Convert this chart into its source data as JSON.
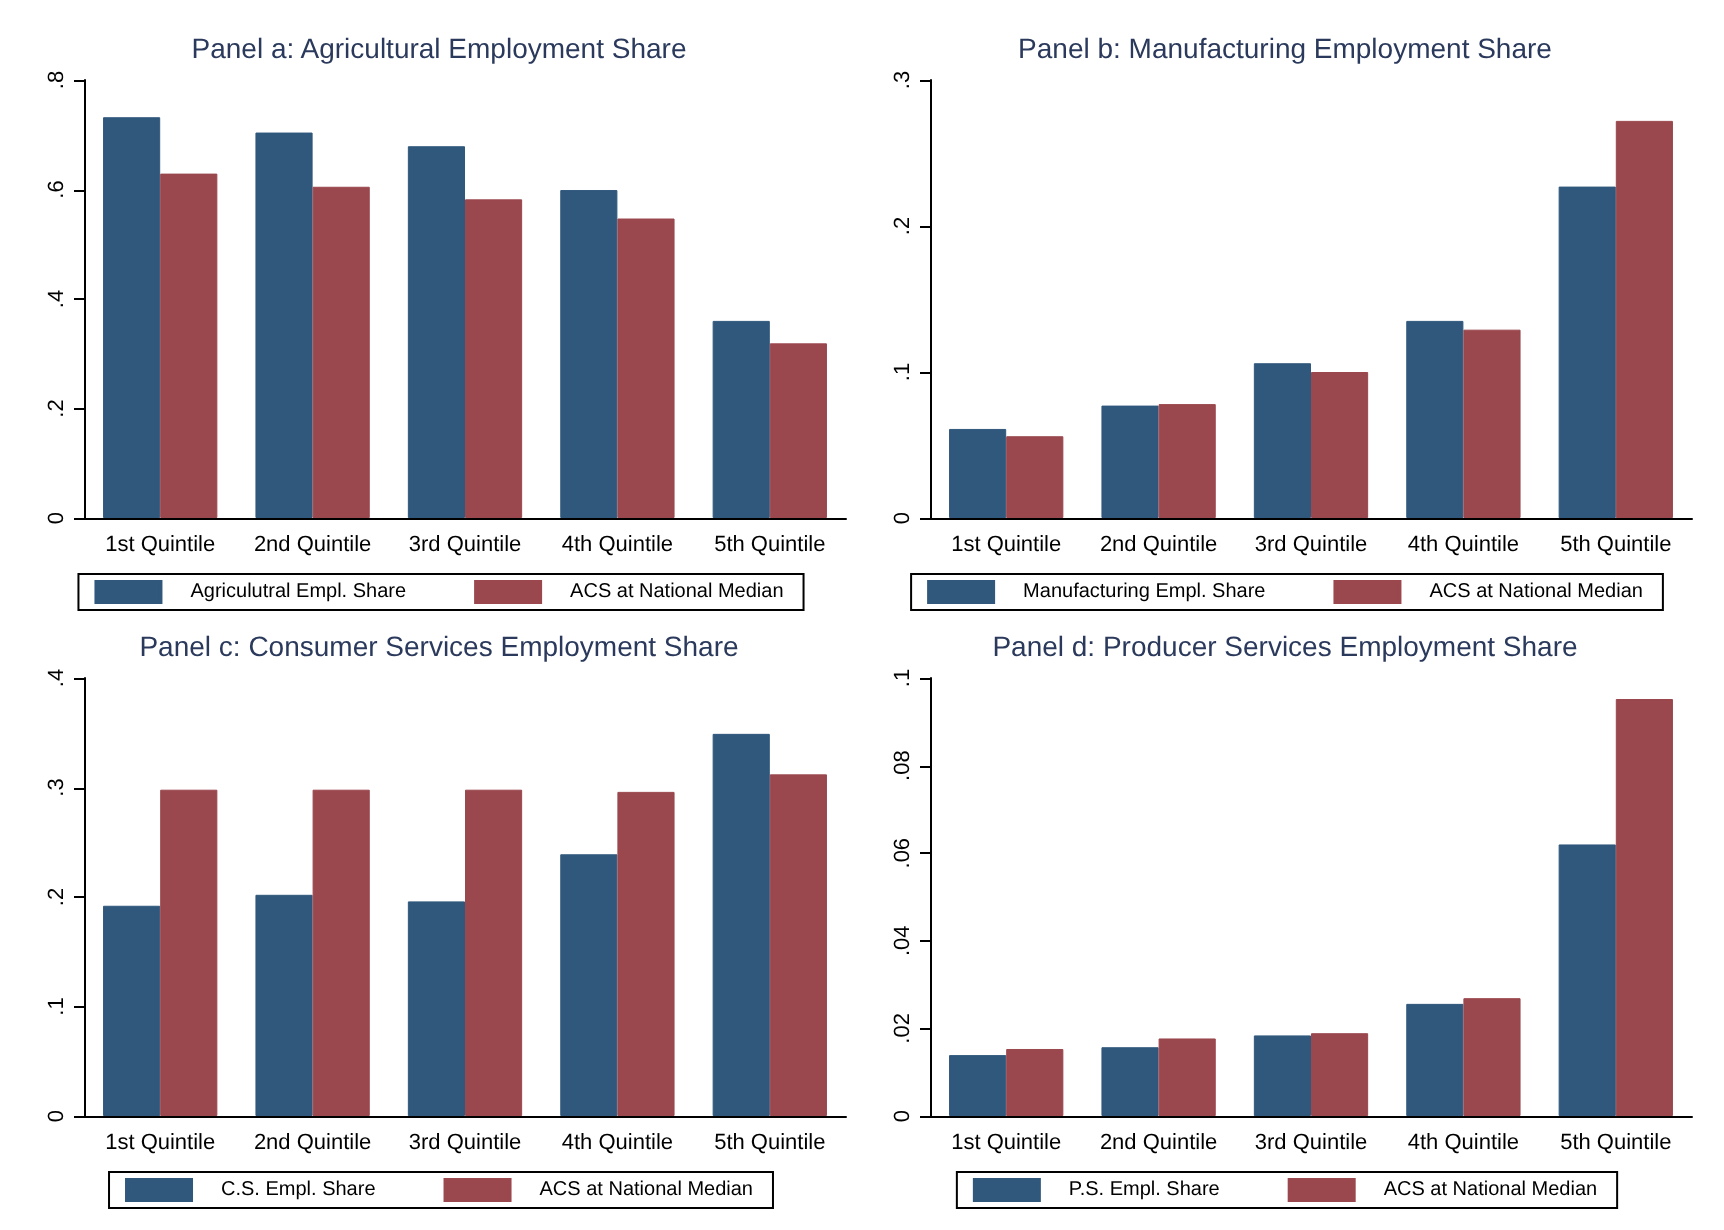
{
  "chart_data": [
    {
      "type": "bar",
      "title": "Panel a: Agricultural Employment Share",
      "categories": [
        "1st Quintile",
        "2nd Quintile",
        "3rd Quintile",
        "4th Quintile",
        "5th Quintile"
      ],
      "series": [
        {
          "name": "Agriculutral Empl. Share",
          "color": "#30587c",
          "values": [
            0.732,
            0.704,
            0.679,
            0.599,
            0.36
          ]
        },
        {
          "name": "ACS at National Median",
          "color": "#9a474d",
          "values": [
            0.629,
            0.605,
            0.582,
            0.547,
            0.319
          ]
        }
      ],
      "ylim": [
        0,
        0.8
      ],
      "yticks": [
        {
          "value": 0,
          "label": "0"
        },
        {
          "value": 0.2,
          "label": ".2"
        },
        {
          "value": 0.4,
          "label": ".4"
        },
        {
          "value": 0.6,
          "label": ".6"
        },
        {
          "value": 0.8,
          "label": ".8"
        }
      ],
      "grid": false,
      "legend": "bottom"
    },
    {
      "type": "bar",
      "title": "Panel b: Manufacturing Employment Share",
      "categories": [
        "1st Quintile",
        "2nd Quintile",
        "3rd Quintile",
        "4th Quintile",
        "5th Quintile"
      ],
      "series": [
        {
          "name": "Manufacturing Empl. Share",
          "color": "#30587c",
          "values": [
            0.061,
            0.077,
            0.106,
            0.135,
            0.227
          ]
        },
        {
          "name": "ACS at National Median",
          "color": "#9a474d",
          "values": [
            0.056,
            0.078,
            0.1,
            0.129,
            0.272
          ]
        }
      ],
      "ylim": [
        0,
        0.3
      ],
      "yticks": [
        {
          "value": 0,
          "label": "0"
        },
        {
          "value": 0.1,
          "label": ".1"
        },
        {
          "value": 0.2,
          "label": ".2"
        },
        {
          "value": 0.3,
          "label": ".3"
        }
      ],
      "grid": false,
      "legend": "bottom"
    },
    {
      "type": "bar",
      "title": "Panel c: Consumer Services Employment Share",
      "categories": [
        "1st Quintile",
        "2nd Quintile",
        "3rd Quintile",
        "4th Quintile",
        "5th Quintile"
      ],
      "series": [
        {
          "name": "C.S. Empl. Share",
          "color": "#30587c",
          "values": [
            0.192,
            0.202,
            0.196,
            0.239,
            0.349
          ]
        },
        {
          "name": "ACS at National Median",
          "color": "#9a474d",
          "values": [
            0.298,
            0.298,
            0.298,
            0.296,
            0.312
          ]
        }
      ],
      "ylim": [
        0,
        0.4
      ],
      "yticks": [
        {
          "value": 0,
          "label": "0"
        },
        {
          "value": 0.1,
          "label": ".1"
        },
        {
          "value": 0.2,
          "label": ".2"
        },
        {
          "value": 0.3,
          "label": ".3"
        },
        {
          "value": 0.4,
          "label": ".4"
        }
      ],
      "grid": false,
      "legend": "bottom"
    },
    {
      "type": "bar",
      "title": "Panel d: Producer Services Employment Share",
      "categories": [
        "1st Quintile",
        "2nd Quintile",
        "3rd Quintile",
        "4th Quintile",
        "5th Quintile"
      ],
      "series": [
        {
          "name": "P.S. Empl. Share",
          "color": "#30587c",
          "values": [
            0.0139,
            0.0157,
            0.0184,
            0.0256,
            0.062
          ]
        },
        {
          "name": "ACS at National Median",
          "color": "#9a474d",
          "values": [
            0.0153,
            0.0177,
            0.0189,
            0.0269,
            0.0952
          ]
        }
      ],
      "ylim": [
        0,
        0.1
      ],
      "yticks": [
        {
          "value": 0,
          "label": "0"
        },
        {
          "value": 0.02,
          "label": ".02"
        },
        {
          "value": 0.04,
          "label": ".04"
        },
        {
          "value": 0.06,
          "label": ".06"
        },
        {
          "value": 0.08,
          "label": ".08"
        },
        {
          "value": 0.1,
          "label": ".1"
        }
      ],
      "grid": false,
      "legend": "bottom"
    }
  ]
}
